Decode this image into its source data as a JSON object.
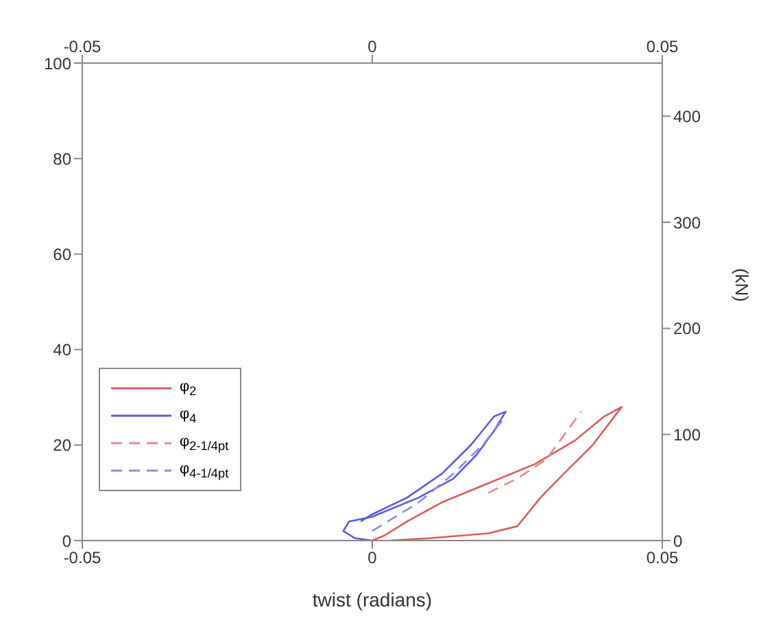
{
  "chart_data": {
    "type": "line",
    "xlabel": "twist (radians)",
    "y2label": "(kN)",
    "xlim": [
      -0.05,
      0.05
    ],
    "xticks": [
      -0.05,
      0,
      0.05
    ],
    "x2lim": [
      -0.05,
      0.05
    ],
    "x2ticks": [
      -0.05,
      0,
      0.05
    ],
    "ylim": [
      0,
      100
    ],
    "yticks": [
      0,
      20,
      40,
      60,
      80,
      100
    ],
    "y2lim": [
      0,
      450
    ],
    "y2ticks": [
      0,
      100,
      200,
      300,
      400
    ],
    "legend": "bottom left",
    "marker": "none",
    "series": [
      {
        "name": "φ$_{2}$",
        "color": "#e05a5a",
        "line_style": "solid",
        "x": [
          0.003,
          0.01,
          0.02,
          0.025,
          0.027,
          0.029,
          0.033,
          0.038,
          0.043,
          0.04,
          0.035,
          0.028,
          0.02,
          0.012,
          0.006,
          0.002,
          0
        ],
        "values": [
          0,
          0.5,
          1.5,
          3,
          6,
          9,
          14,
          20,
          28,
          26,
          21,
          16,
          12,
          8,
          4,
          1,
          0
        ]
      },
      {
        "name": "φ$_{4}$",
        "color": "#5a5ae0",
        "line_style": "solid",
        "x": [
          0,
          -0.003,
          -0.005,
          -0.004,
          0,
          0.008,
          0.014,
          0.018,
          0.021,
          0.023,
          0.021,
          0.017,
          0.012,
          0.006,
          0,
          -0.002
        ],
        "values": [
          0,
          0.5,
          2,
          4,
          5,
          9,
          13,
          18,
          23,
          27,
          26,
          20,
          14,
          9,
          5.5,
          4
        ]
      },
      {
        "name": "φ$_{2-1/4pt}$",
        "color": "#e88a8a",
        "line_style": "dashed",
        "x": [
          0.02,
          0.025,
          0.03,
          0.033,
          0.036
        ],
        "values": [
          10,
          13,
          17,
          22,
          27
        ]
      },
      {
        "name": "φ$_{4-1/4pt}$",
        "color": "#8a8ae8",
        "line_style": "dashed",
        "x": [
          0,
          0.008,
          0.014,
          0.019,
          0.023
        ],
        "values": [
          2,
          8,
          14,
          20,
          26
        ]
      }
    ]
  }
}
